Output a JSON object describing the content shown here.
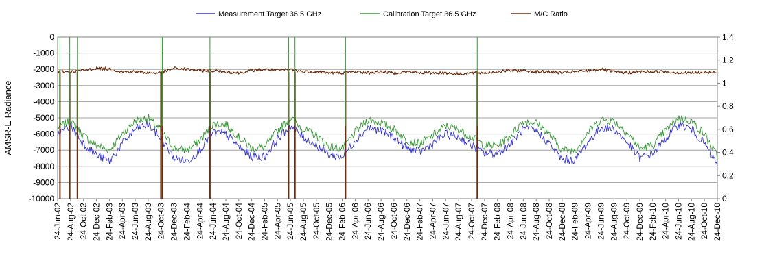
{
  "chart_data": {
    "type": "line",
    "title": "",
    "ylabel": "AMSR-E Radiance",
    "y2label": "",
    "ylim": [
      -10000,
      0
    ],
    "y2lim": [
      0,
      1.4
    ],
    "yticks": [
      "0",
      "-1000",
      "-2000",
      "-3000",
      "-4000",
      "-5000",
      "-6000",
      "-7000",
      "-8000",
      "-9000",
      "-10000"
    ],
    "y2ticks": [
      "1.4",
      "1.2",
      "1",
      "0.8",
      "0.6",
      "0.4",
      "0.2",
      "0"
    ],
    "xrange": [
      "2002-06-24",
      "2010-12-24"
    ],
    "xticks": [
      "24-Jun-02",
      "24-Aug-02",
      "24-Oct-02",
      "24-Dec-02",
      "24-Feb-03",
      "24-Apr-03",
      "24-Jun-03",
      "24-Aug-03",
      "24-Oct-03",
      "24-Dec-03",
      "24-Feb-04",
      "24-Apr-04",
      "24-Jun-04",
      "24-Aug-04",
      "24-Oct-04",
      "24-Dec-04",
      "24-Feb-05",
      "24-Apr-05",
      "24-Jun-05",
      "24-Aug-05",
      "24-Oct-05",
      "24-Dec-05",
      "24-Feb-06",
      "24-Apr-06",
      "24-Jun-06",
      "24-Aug-06",
      "24-Oct-06",
      "24-Dec-06",
      "24-Feb-07",
      "24-Apr-07",
      "24-Jun-07",
      "24-Aug-07",
      "24-Oct-07",
      "24-Dec-07",
      "24-Feb-08",
      "24-Apr-08",
      "24-Jun-08",
      "24-Aug-08",
      "24-Oct-08",
      "24-Dec-08",
      "24-Feb-09",
      "24-Apr-09",
      "24-Jun-09",
      "24-Aug-09",
      "24-Oct-09",
      "24-Dec-09",
      "24-Feb-10",
      "24-Apr-10",
      "24-Jun-10",
      "24-Aug-10",
      "24-Oct-10",
      "24-Dec-10"
    ],
    "grid": true,
    "legend_position": "top",
    "series": [
      {
        "name": "Measurement Target 36.5 GHz",
        "axis": "left",
        "color": "#3333cc",
        "x": [
          "2002-06-24",
          "2002-08-24",
          "2002-10-24",
          "2002-12-24",
          "2003-02-24",
          "2003-04-24",
          "2003-06-24",
          "2003-08-24",
          "2003-10-24",
          "2003-12-24",
          "2004-02-24",
          "2004-04-24",
          "2004-06-24",
          "2004-08-24",
          "2004-10-24",
          "2004-12-24",
          "2005-02-24",
          "2005-04-24",
          "2005-06-24",
          "2005-08-24",
          "2005-10-24",
          "2005-12-24",
          "2006-02-24",
          "2006-04-24",
          "2006-06-24",
          "2006-08-24",
          "2006-10-24",
          "2006-12-24",
          "2007-02-24",
          "2007-04-24",
          "2007-06-24",
          "2007-08-24",
          "2007-10-24",
          "2007-12-24",
          "2008-02-24",
          "2008-04-24",
          "2008-06-24",
          "2008-08-24",
          "2008-10-24",
          "2008-12-24",
          "2009-02-24",
          "2009-04-24",
          "2009-06-24",
          "2009-08-24",
          "2009-10-24",
          "2009-12-24",
          "2010-02-24",
          "2010-04-24",
          "2010-06-24",
          "2010-08-24",
          "2010-10-24",
          "2010-12-24"
        ],
        "y": [
          -6000,
          -5500,
          -6600,
          -7300,
          -7700,
          -6600,
          -5700,
          -5400,
          -6300,
          -7500,
          -7700,
          -7000,
          -5900,
          -6000,
          -6800,
          -7400,
          -7400,
          -6300,
          -5500,
          -6200,
          -6700,
          -7300,
          -7400,
          -6400,
          -5600,
          -5800,
          -6200,
          -6900,
          -7100,
          -6600,
          -6000,
          -6200,
          -6700,
          -7200,
          -7200,
          -6600,
          -5700,
          -5800,
          -6600,
          -7600,
          -7600,
          -6500,
          -5600,
          -5700,
          -6500,
          -7500,
          -7200,
          -6300,
          -5400,
          -5700,
          -6600,
          -7900
        ]
      },
      {
        "name": "Calibration Target 36.5 GHz",
        "axis": "left",
        "color": "#339933",
        "x": [
          "2002-06-24",
          "2002-08-24",
          "2002-10-24",
          "2002-12-24",
          "2003-02-24",
          "2003-04-24",
          "2003-06-24",
          "2003-08-24",
          "2003-10-24",
          "2003-12-24",
          "2004-02-24",
          "2004-04-24",
          "2004-06-24",
          "2004-08-24",
          "2004-10-24",
          "2004-12-24",
          "2005-02-24",
          "2005-04-24",
          "2005-06-24",
          "2005-08-24",
          "2005-10-24",
          "2005-12-24",
          "2006-02-24",
          "2006-04-24",
          "2006-06-24",
          "2006-08-24",
          "2006-10-24",
          "2006-12-24",
          "2007-02-24",
          "2007-04-24",
          "2007-06-24",
          "2007-08-24",
          "2007-10-24",
          "2007-12-24",
          "2008-02-24",
          "2008-04-24",
          "2008-06-24",
          "2008-08-24",
          "2008-10-24",
          "2008-12-24",
          "2009-02-24",
          "2009-04-24",
          "2009-06-24",
          "2009-08-24",
          "2009-10-24",
          "2009-12-24",
          "2010-02-24",
          "2010-04-24",
          "2010-06-24",
          "2010-08-24",
          "2010-10-24",
          "2010-12-24"
        ],
        "y": [
          -5600,
          -5200,
          -6100,
          -6700,
          -7000,
          -6000,
          -5200,
          -5000,
          -5800,
          -6900,
          -7000,
          -6400,
          -5400,
          -5400,
          -6200,
          -6900,
          -6800,
          -5800,
          -5000,
          -5700,
          -6100,
          -6800,
          -6900,
          -5900,
          -5100,
          -5300,
          -5700,
          -6400,
          -6600,
          -6100,
          -5500,
          -5700,
          -6200,
          -6700,
          -6700,
          -6100,
          -5200,
          -5300,
          -6000,
          -7000,
          -7000,
          -5900,
          -5100,
          -5200,
          -5900,
          -6900,
          -6700,
          -5800,
          -5000,
          -5200,
          -6000,
          -7400
        ]
      },
      {
        "name": "M/C Ratio",
        "axis": "right",
        "color": "#6b2e0e",
        "x": [
          "2002-06-24",
          "2002-08-24",
          "2002-10-24",
          "2002-12-24",
          "2003-02-24",
          "2003-04-24",
          "2003-06-24",
          "2003-08-24",
          "2003-10-24",
          "2003-12-24",
          "2004-02-24",
          "2004-04-24",
          "2004-06-24",
          "2004-08-24",
          "2004-10-24",
          "2004-12-24",
          "2005-02-24",
          "2005-04-24",
          "2005-06-24",
          "2005-08-24",
          "2005-10-24",
          "2005-12-24",
          "2006-02-24",
          "2006-04-24",
          "2006-06-24",
          "2006-08-24",
          "2006-10-24",
          "2006-12-24",
          "2007-02-24",
          "2007-04-24",
          "2007-06-24",
          "2007-08-24",
          "2007-10-24",
          "2007-12-24",
          "2008-02-24",
          "2008-04-24",
          "2008-06-24",
          "2008-08-24",
          "2008-10-24",
          "2008-12-24",
          "2009-02-24",
          "2009-04-24",
          "2009-06-24",
          "2009-08-24",
          "2009-10-24",
          "2009-12-24",
          "2010-02-24",
          "2010-04-24",
          "2010-06-24",
          "2010-08-24",
          "2010-10-24",
          "2010-12-24"
        ],
        "y": [
          1.1,
          1.1,
          1.11,
          1.13,
          1.12,
          1.1,
          1.1,
          1.09,
          1.09,
          1.13,
          1.12,
          1.11,
          1.11,
          1.1,
          1.09,
          1.11,
          1.12,
          1.11,
          1.12,
          1.1,
          1.1,
          1.09,
          1.09,
          1.1,
          1.09,
          1.1,
          1.09,
          1.1,
          1.09,
          1.09,
          1.09,
          1.08,
          1.09,
          1.09,
          1.1,
          1.11,
          1.11,
          1.1,
          1.1,
          1.09,
          1.1,
          1.11,
          1.12,
          1.1,
          1.09,
          1.1,
          1.1,
          1.1,
          1.09,
          1.09,
          1.09,
          1.1
        ]
      }
    ],
    "annotations_drops": [
      {
        "x": "2002-07-05",
        "series": "M/C Ratio"
      },
      {
        "x": "2002-08-20",
        "series": "M/C Ratio"
      },
      {
        "x": "2002-09-25",
        "series": "M/C Ratio"
      },
      {
        "x": "2003-10-23",
        "series": "M/C Ratio"
      },
      {
        "x": "2003-10-30",
        "series": "M/C Ratio"
      },
      {
        "x": "2004-06-10",
        "series": "M/C Ratio"
      },
      {
        "x": "2005-06-15",
        "series": "M/C Ratio"
      },
      {
        "x": "2005-07-15",
        "series": "M/C Ratio"
      },
      {
        "x": "2006-03-10",
        "series": "M/C Ratio"
      },
      {
        "x": "2007-11-20",
        "series": "M/C Ratio"
      }
    ]
  }
}
